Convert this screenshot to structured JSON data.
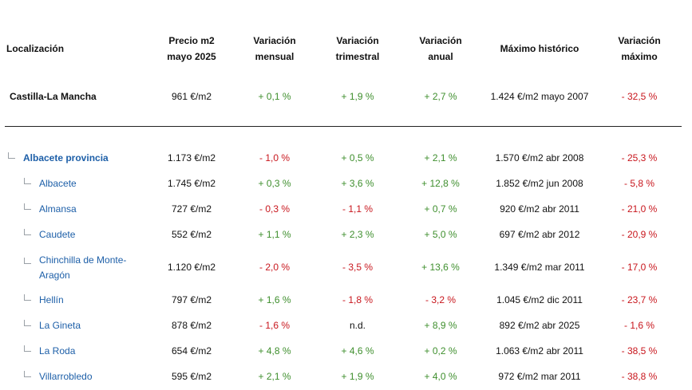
{
  "headers": {
    "location": "Localización",
    "price_line1": "Precio m2",
    "price_line2": "mayo 2025",
    "monthly_line1": "Variación",
    "monthly_line2": "mensual",
    "quarterly_line1": "Variación",
    "quarterly_line2": "trimestral",
    "annual_line1": "Variación",
    "annual_line2": "anual",
    "max": "Máximo histórico",
    "max_var_line1": "Variación",
    "max_var_line2": "máximo"
  },
  "region": {
    "name": "Castilla-La Mancha",
    "price": "961 €/m2",
    "monthly": "+ 0,1 %",
    "quarterly": "+ 1,9 %",
    "annual": "+ 2,7 %",
    "max": "1.424 €/m2 mayo 2007",
    "max_var": "- 32,5 %"
  },
  "rows": [
    {
      "name": "Albacete provincia",
      "price": "1.173 €/m2",
      "monthly": "- 1,0 %",
      "quarterly": "+ 0,5 %",
      "annual": "+ 2,1 %",
      "max": "1.570 €/m2 abr 2008",
      "max_var": "- 25,3 %"
    },
    {
      "name": "Albacete",
      "price": "1.745 €/m2",
      "monthly": "+ 0,3 %",
      "quarterly": "+ 3,6 %",
      "annual": "+ 12,8 %",
      "max": "1.852 €/m2 jun 2008",
      "max_var": "- 5,8 %"
    },
    {
      "name": "Almansa",
      "price": "727 €/m2",
      "monthly": "- 0,3 %",
      "quarterly": "- 1,1 %",
      "annual": "+ 0,7 %",
      "max": "920 €/m2 abr 2011",
      "max_var": "- 21,0 %"
    },
    {
      "name": "Caudete",
      "price": "552 €/m2",
      "monthly": "+ 1,1 %",
      "quarterly": "+ 2,3 %",
      "annual": "+ 5,0 %",
      "max": "697 €/m2 abr 2012",
      "max_var": "- 20,9 %"
    },
    {
      "name": "Chinchilla de Monte-Aragón",
      "name_line1": "Chinchilla de Monte-",
      "name_line2": "Aragón",
      "price": "1.120 €/m2",
      "monthly": "- 2,0 %",
      "quarterly": "- 3,5 %",
      "annual": "+ 13,6 %",
      "max": "1.349 €/m2 mar 2011",
      "max_var": "- 17,0 %"
    },
    {
      "name": "Hellín",
      "price": "797 €/m2",
      "monthly": "+ 1,6 %",
      "quarterly": "- 1,8 %",
      "annual": "- 3,2 %",
      "max": "1.045 €/m2 dic 2011",
      "max_var": "- 23,7 %"
    },
    {
      "name": "La Gineta",
      "price": "878 €/m2",
      "monthly": "- 1,6 %",
      "quarterly": "n.d.",
      "annual": "+ 8,9 %",
      "max": "892 €/m2 abr 2025",
      "max_var": "- 1,6 %"
    },
    {
      "name": "La Roda",
      "price": "654 €/m2",
      "monthly": "+ 4,8 %",
      "quarterly": "+ 4,6 %",
      "annual": "+ 0,2 %",
      "max": "1.063 €/m2 abr 2011",
      "max_var": "- 38,5 %"
    },
    {
      "name": "Villarrobledo",
      "price": "595 €/m2",
      "monthly": "+ 2,1 %",
      "quarterly": "+ 1,9 %",
      "annual": "+ 4,0 %",
      "max": "972 €/m2 mar 2011",
      "max_var": "- 38,8 %"
    }
  ],
  "colors": {
    "positive": "#3f8f2e",
    "negative": "#c8161d",
    "link": "#1d5fa8"
  }
}
